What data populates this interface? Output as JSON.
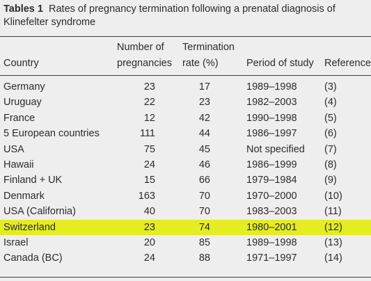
{
  "caption": {
    "label": "Tables 1",
    "text": "Rates of pregnancy termination following a prenatal diagnosis of Klinefelter syndrome"
  },
  "headers": {
    "country": "Country",
    "number_line1": "Number of",
    "number_line2": "pregnancies",
    "rate_line1": "Termination",
    "rate_line2": "rate (%)",
    "period": "Period of study",
    "references": "References"
  },
  "rows": [
    {
      "country": "Germany",
      "number": "23",
      "rate": "17",
      "period": "1989–1998",
      "ref": "(3)"
    },
    {
      "country": "Uruguay",
      "number": "22",
      "rate": "23",
      "period": "1982–2003",
      "ref": "(4)"
    },
    {
      "country": "France",
      "number": "12",
      "rate": "42",
      "period": "1990–1998",
      "ref": "(5)"
    },
    {
      "country": "5 European countries",
      "number": "111",
      "rate": "44",
      "period": "1986–1997",
      "ref": "(6)"
    },
    {
      "country": "USA",
      "number": "75",
      "rate": "45",
      "period": "Not specified",
      "ref": "(7)"
    },
    {
      "country": "Hawaii",
      "number": "24",
      "rate": "46",
      "period": "1986–1999",
      "ref": "(8)"
    },
    {
      "country": "Finland + UK",
      "number": "15",
      "rate": "66",
      "period": "1979–1984",
      "ref": "(9)"
    },
    {
      "country": "Denmark",
      "number": "163",
      "rate": "70",
      "period": "1970–2000",
      "ref": "(10)"
    },
    {
      "country": "USA (California)",
      "number": "40",
      "rate": "70",
      "period": "1983–2003",
      "ref": "(11)"
    },
    {
      "country": "Switzerland",
      "number": "23",
      "rate": "74",
      "period": "1980–2001",
      "ref": "(12)",
      "highlighted": true
    },
    {
      "country": "Israel",
      "number": "20",
      "rate": "85",
      "period": "1989–1998",
      "ref": "(13)"
    },
    {
      "country": "Canada (BC)",
      "number": "24",
      "rate": "88",
      "period": "1971–1997",
      "ref": "(14)"
    }
  ],
  "colors": {
    "background": "#eeeeee",
    "highlight": "#e4ec22",
    "text": "#2b2b2b"
  }
}
